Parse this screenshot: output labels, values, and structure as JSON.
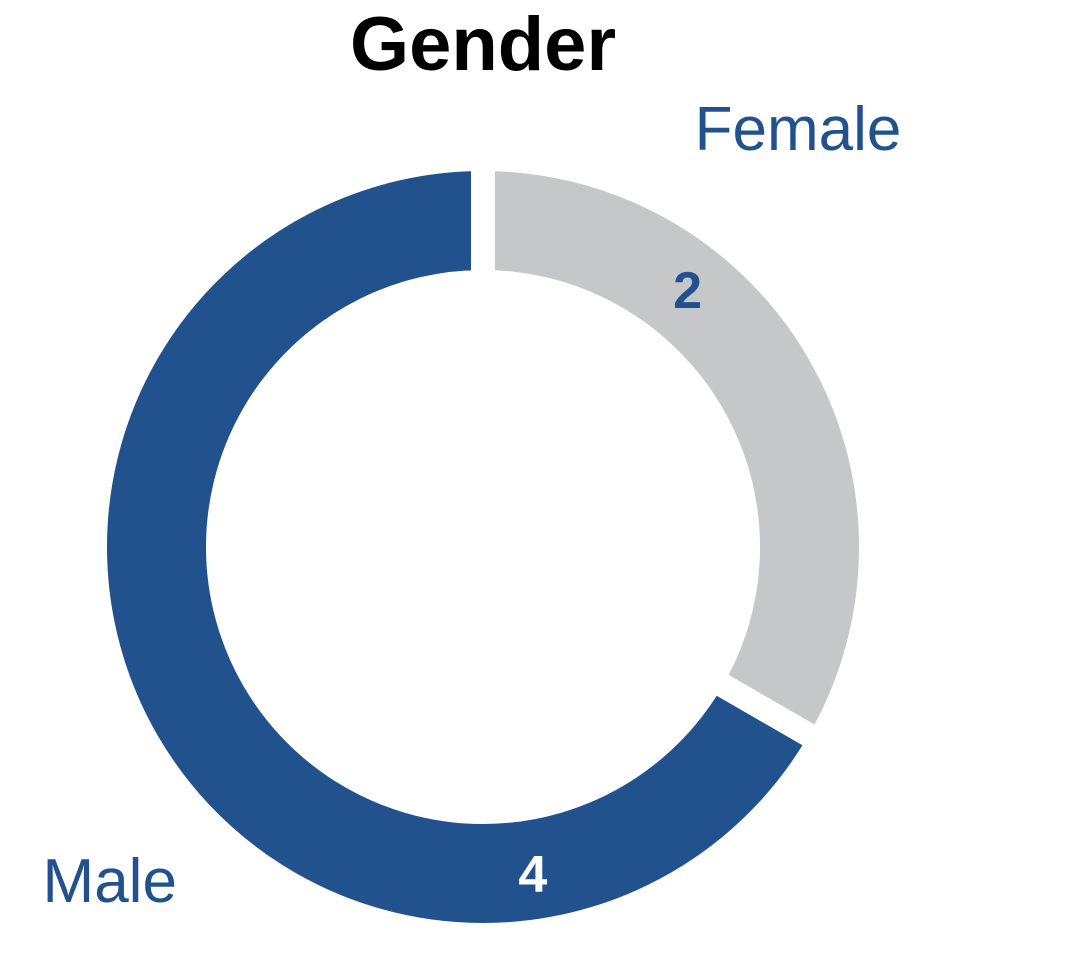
{
  "chart_data": {
    "type": "pie",
    "subtype": "donut",
    "title": "Gender",
    "categories": [
      "Female",
      "Male"
    ],
    "values": [
      2,
      4
    ],
    "data_labels": [
      "2",
      "4"
    ],
    "colors": [
      "#C6C7C9",
      "#21528D"
    ],
    "label_color": "#21528D",
    "value_label_colors": [
      "#21528D",
      "#FFFFFF"
    ]
  }
}
